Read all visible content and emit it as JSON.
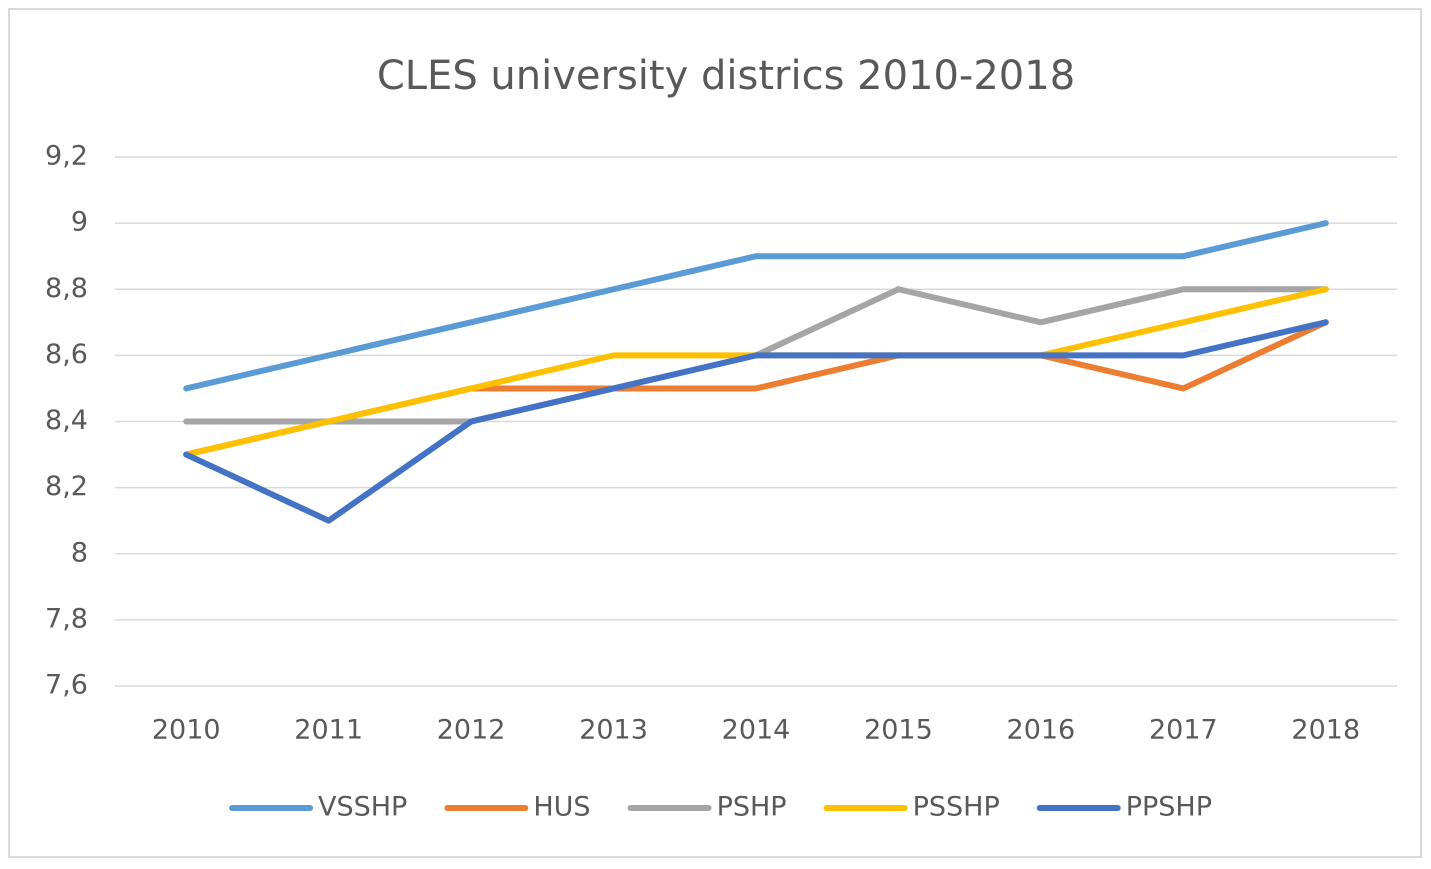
{
  "chart_data": {
    "type": "line",
    "title": "CLES university districs 2010-2018",
    "categories": [
      "2010",
      "2011",
      "2012",
      "2013",
      "2014",
      "2015",
      "2016",
      "2017",
      "2018"
    ],
    "series": [
      {
        "name": "VSSHP",
        "color": "#5b9bd5",
        "values": [
          8.5,
          8.6,
          8.7,
          8.8,
          8.9,
          8.9,
          8.9,
          8.9,
          9.0
        ]
      },
      {
        "name": "HUS",
        "color": "#ed7d31",
        "values": [
          8.3,
          8.4,
          8.5,
          8.5,
          8.5,
          8.6,
          8.6,
          8.5,
          8.7
        ]
      },
      {
        "name": "PSHP",
        "color": "#a5a5a5",
        "values": [
          8.4,
          8.4,
          8.4,
          8.5,
          8.6,
          8.8,
          8.7,
          8.8,
          8.8
        ]
      },
      {
        "name": "PSSHP",
        "color": "#ffc000",
        "values": [
          8.3,
          8.4,
          8.5,
          8.6,
          8.6,
          8.6,
          8.6,
          8.7,
          8.8
        ]
      },
      {
        "name": "PPSHP",
        "color": "#4472c4",
        "values": [
          8.3,
          8.1,
          8.4,
          8.5,
          8.6,
          8.6,
          8.6,
          8.6,
          8.7
        ]
      }
    ],
    "ylim": [
      7.6,
      9.2
    ],
    "yticks": [
      {
        "value": 7.6,
        "label": "7,6"
      },
      {
        "value": 7.8,
        "label": "7,8"
      },
      8,
      {
        "value": 8.2,
        "label": "8,2"
      },
      {
        "value": 8.4,
        "label": "8,4"
      },
      {
        "value": 8.6,
        "label": "8,6"
      },
      {
        "value": 8.8,
        "label": "8,8"
      },
      9,
      {
        "value": 9.2,
        "label": "9,2"
      }
    ],
    "grid": true,
    "legend": "bottom"
  }
}
